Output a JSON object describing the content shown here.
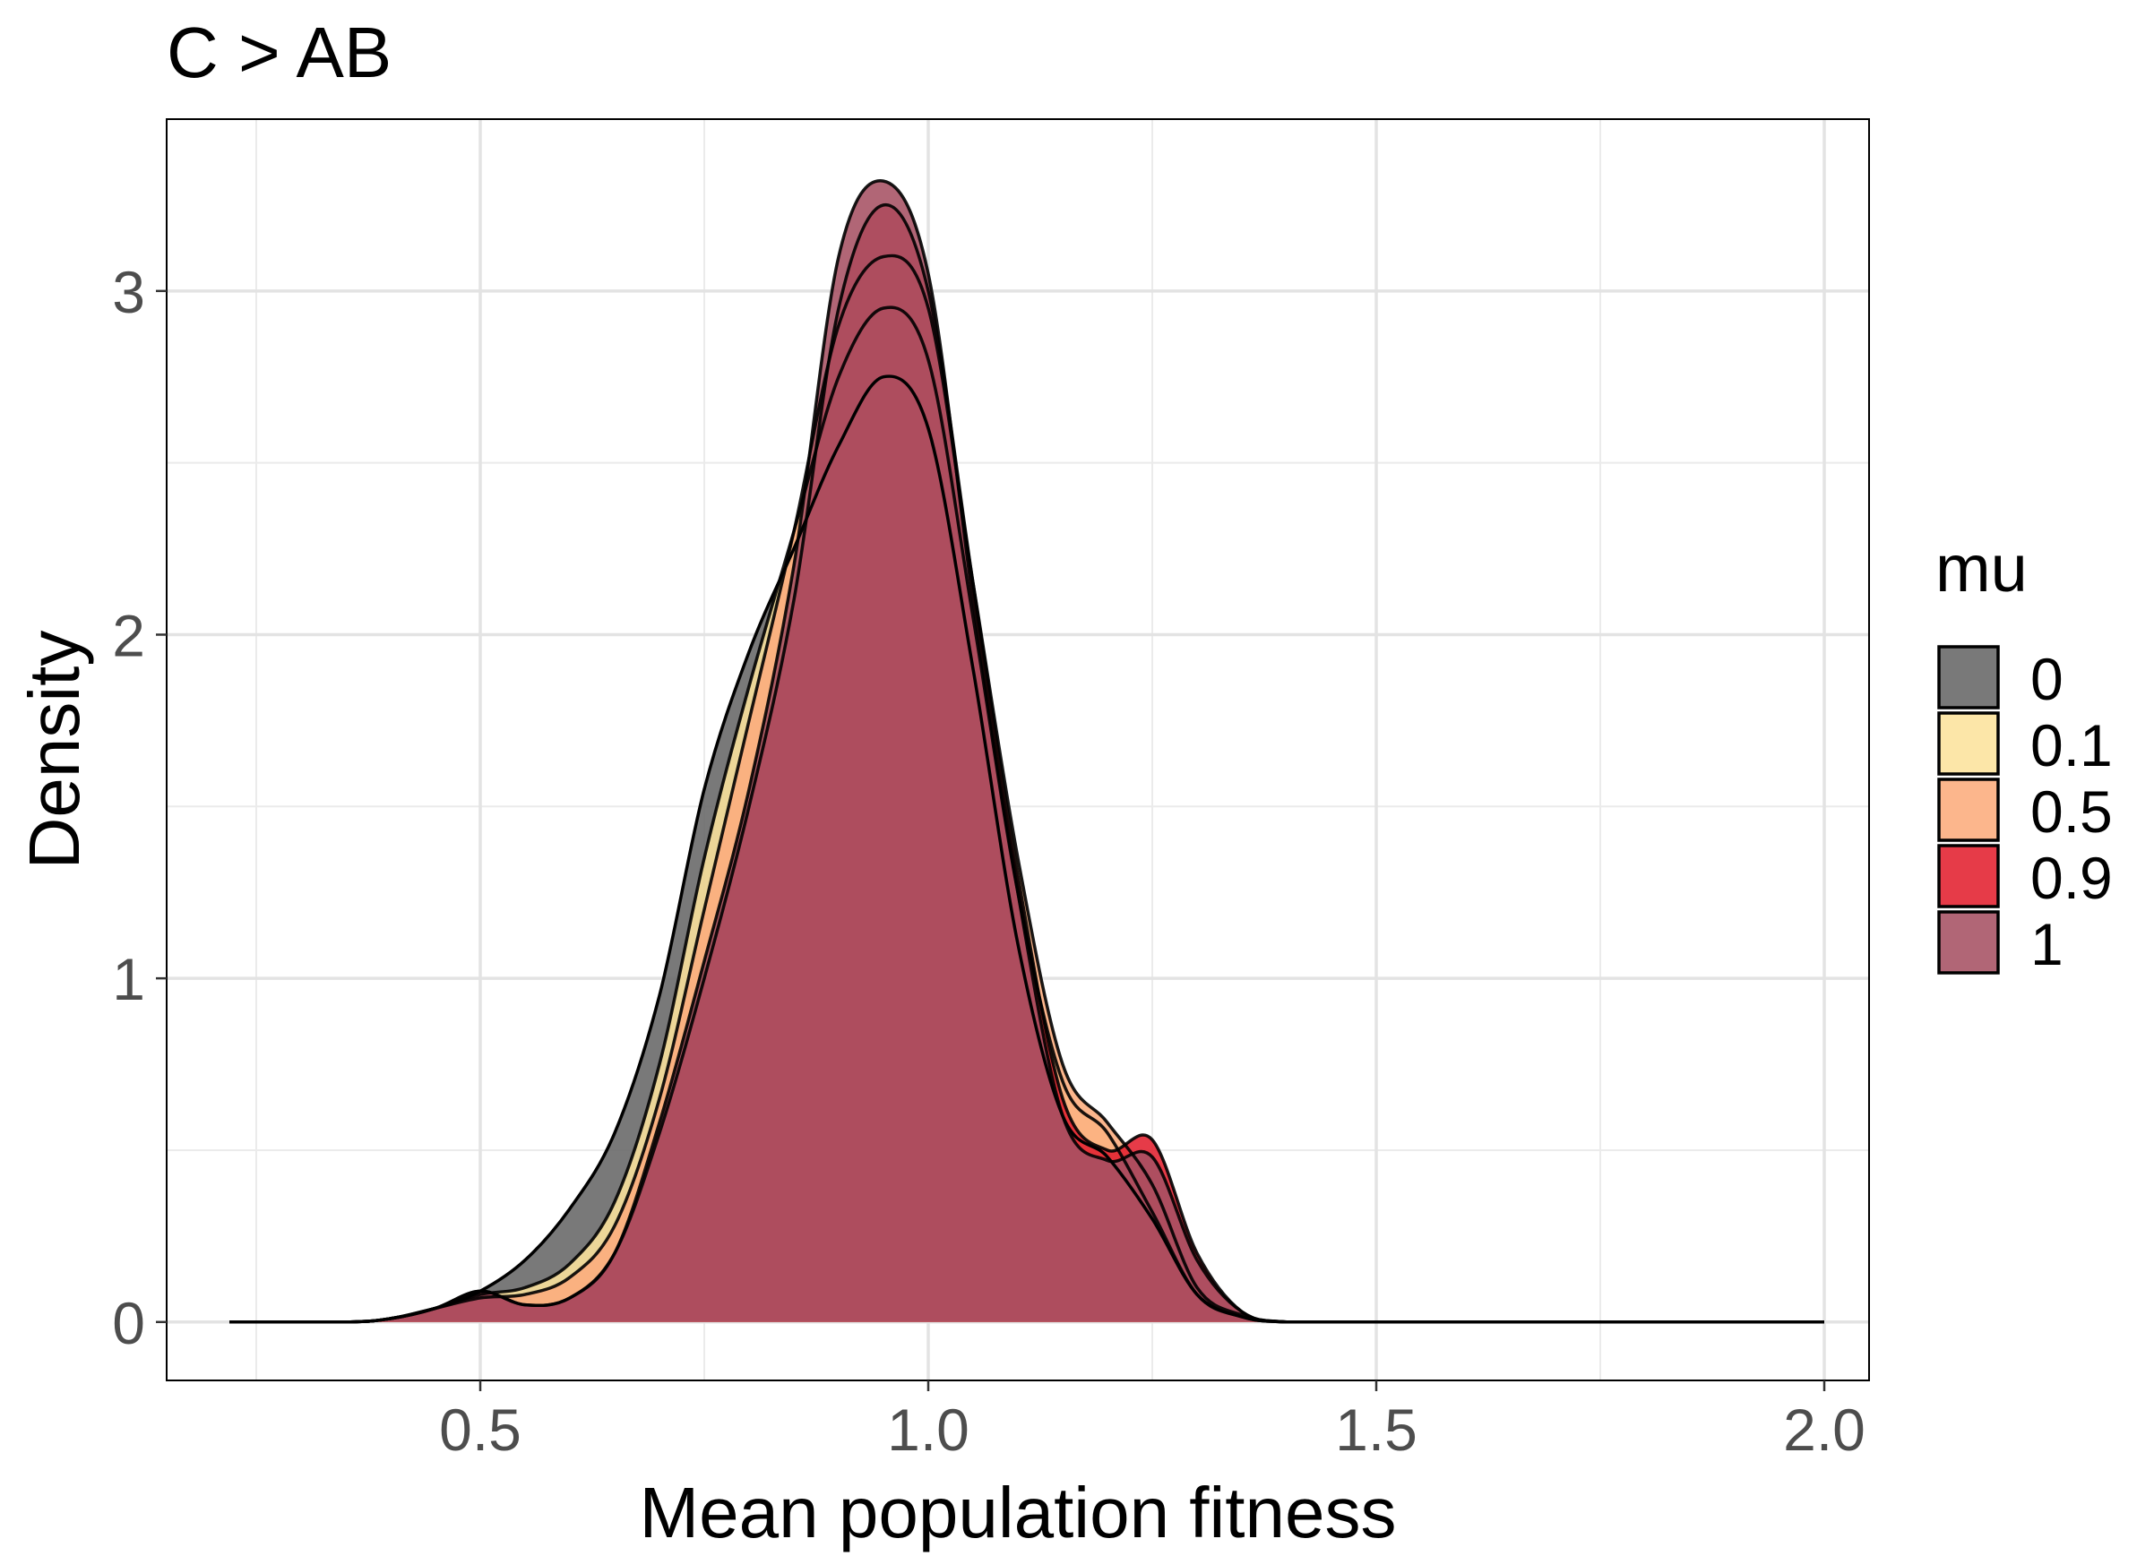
{
  "chart_data": {
    "type": "area",
    "title": "C > AB",
    "xlabel": "Mean population fitness",
    "ylabel": "Density",
    "xlim": [
      0.15,
      2.05
    ],
    "ylim": [
      -0.17,
      3.5
    ],
    "x_ticks": [
      0.5,
      1.0,
      1.5,
      2.0
    ],
    "x_tick_labels": [
      "0.5",
      "1.0",
      "1.5",
      "2.0"
    ],
    "y_ticks": [
      0,
      1,
      2,
      3
    ],
    "y_tick_labels": [
      "0",
      "1",
      "2",
      "3"
    ],
    "grid": true,
    "legend": {
      "title": "mu",
      "position": "right"
    },
    "series": [
      {
        "name": "0",
        "color": "#666666",
        "x": [
          0.22,
          0.35,
          0.4,
          0.45,
          0.5,
          0.55,
          0.6,
          0.65,
          0.7,
          0.75,
          0.8,
          0.85,
          0.9,
          0.95,
          1.0,
          1.05,
          1.1,
          1.15,
          1.2,
          1.25,
          1.3,
          1.35,
          1.4,
          1.5,
          2.0
        ],
        "y": [
          0.0,
          0.0,
          0.01,
          0.04,
          0.09,
          0.18,
          0.33,
          0.55,
          0.95,
          1.55,
          1.95,
          2.25,
          2.55,
          2.75,
          2.6,
          1.9,
          1.1,
          0.6,
          0.48,
          0.3,
          0.08,
          0.015,
          0.0,
          0.0,
          0.0
        ]
      },
      {
        "name": "0.1",
        "color": "#fce39c",
        "x": [
          0.22,
          0.35,
          0.4,
          0.45,
          0.5,
          0.55,
          0.6,
          0.65,
          0.7,
          0.75,
          0.8,
          0.85,
          0.9,
          0.95,
          1.0,
          1.05,
          1.1,
          1.15,
          1.2,
          1.25,
          1.3,
          1.35,
          1.4,
          1.5,
          2.0
        ],
        "y": [
          0.0,
          0.0,
          0.01,
          0.04,
          0.08,
          0.1,
          0.17,
          0.35,
          0.75,
          1.35,
          1.85,
          2.3,
          2.75,
          2.95,
          2.8,
          2.05,
          1.25,
          0.7,
          0.55,
          0.32,
          0.08,
          0.015,
          0.0,
          0.0,
          0.0
        ]
      },
      {
        "name": "0.5",
        "color": "#fcac7c",
        "x": [
          0.22,
          0.35,
          0.4,
          0.45,
          0.5,
          0.55,
          0.6,
          0.65,
          0.7,
          0.75,
          0.8,
          0.85,
          0.9,
          0.95,
          1.0,
          1.05,
          1.1,
          1.15,
          1.2,
          1.25,
          1.3,
          1.35,
          1.4,
          1.5,
          2.0
        ],
        "y": [
          0.0,
          0.0,
          0.01,
          0.04,
          0.07,
          0.08,
          0.13,
          0.28,
          0.65,
          1.2,
          1.75,
          2.3,
          2.9,
          3.1,
          2.95,
          2.15,
          1.35,
          0.75,
          0.58,
          0.4,
          0.1,
          0.02,
          0.0,
          0.0,
          0.0
        ]
      },
      {
        "name": "0.9",
        "color": "#e3202f",
        "x": [
          0.22,
          0.35,
          0.4,
          0.45,
          0.5,
          0.55,
          0.6,
          0.65,
          0.7,
          0.75,
          0.8,
          0.85,
          0.9,
          0.95,
          1.0,
          1.05,
          1.1,
          1.15,
          1.2,
          1.25,
          1.3,
          1.35,
          1.4,
          1.5,
          2.0
        ],
        "y": [
          0.0,
          0.0,
          0.01,
          0.04,
          0.09,
          0.05,
          0.07,
          0.2,
          0.55,
          1.0,
          1.5,
          2.1,
          2.95,
          3.25,
          3.0,
          2.15,
          1.3,
          0.65,
          0.5,
          0.53,
          0.2,
          0.03,
          0.0,
          0.0,
          0.0
        ]
      },
      {
        "name": "1",
        "color": "#a65163",
        "x": [
          0.22,
          0.35,
          0.4,
          0.45,
          0.5,
          0.55,
          0.6,
          0.65,
          0.7,
          0.75,
          0.8,
          0.85,
          0.9,
          0.95,
          1.0,
          1.05,
          1.1,
          1.15,
          1.2,
          1.25,
          1.3,
          1.35,
          1.4,
          1.5,
          2.0
        ],
        "y": [
          0.0,
          0.0,
          0.01,
          0.04,
          0.09,
          0.05,
          0.07,
          0.2,
          0.58,
          1.05,
          1.55,
          2.2,
          3.1,
          3.32,
          3.05,
          2.1,
          1.25,
          0.6,
          0.47,
          0.48,
          0.18,
          0.03,
          0.0,
          0.0,
          0.0
        ]
      }
    ]
  }
}
